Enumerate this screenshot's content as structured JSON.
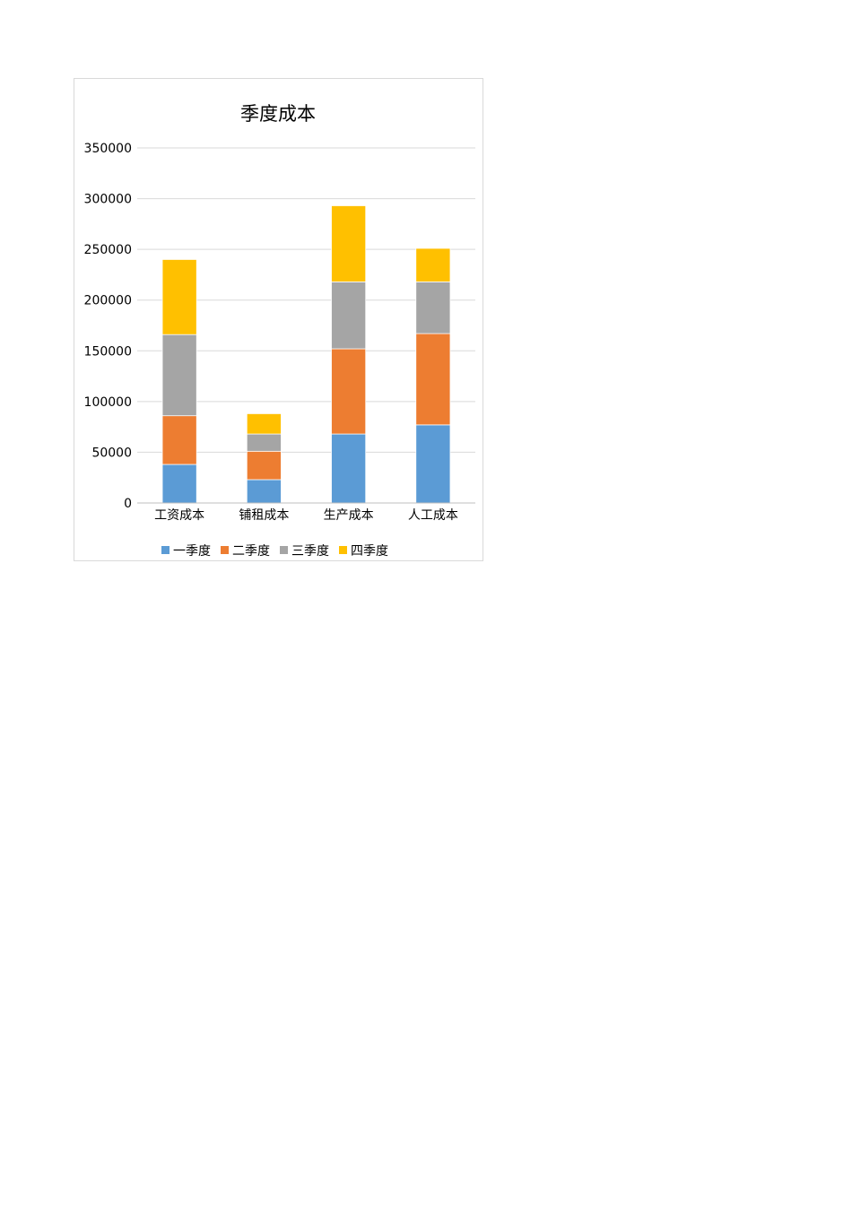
{
  "chart_data": {
    "type": "bar",
    "stacked": true,
    "title": "季度成本",
    "categories": [
      "工资成本",
      "铺租成本",
      "生产成本",
      "人工成本"
    ],
    "series": [
      {
        "name": "一季度",
        "color": "#5b9bd5",
        "values": [
          38000,
          23000,
          68000,
          77000
        ]
      },
      {
        "name": "二季度",
        "color": "#ed7d31",
        "values": [
          48000,
          28000,
          84000,
          90000
        ]
      },
      {
        "name": "三季度",
        "color": "#a5a5a5",
        "values": [
          80000,
          17000,
          66000,
          51000
        ]
      },
      {
        "name": "四季度",
        "color": "#ffc000",
        "values": [
          74000,
          20000,
          75000,
          33000
        ]
      }
    ],
    "ylim": [
      0,
      350000
    ],
    "yticks": [
      "0",
      "50000",
      "100000",
      "150000",
      "200000",
      "250000",
      "300000",
      "350000"
    ],
    "grid": true,
    "legend_position": "bottom"
  }
}
